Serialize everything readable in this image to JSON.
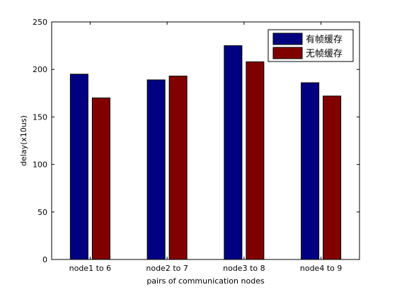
{
  "chart_data": {
    "type": "bar",
    "categories": [
      "node1 to 6",
      "node2 to 7",
      "node3 to 8",
      "node4 to 9"
    ],
    "series": [
      {
        "name": "有帧缓存",
        "values": [
          195,
          189,
          225,
          186
        ],
        "color": "#000080"
      },
      {
        "name": "无帧缓存",
        "values": [
          170,
          193,
          208,
          172
        ],
        "color": "#800000"
      }
    ],
    "xlabel": "pairs of communication nodes",
    "ylabel": "delay(x10us)",
    "ylim": [
      0,
      250
    ],
    "yticks": [
      0,
      50,
      100,
      150,
      200,
      250
    ],
    "grid": false,
    "legend_position": "top-right"
  }
}
